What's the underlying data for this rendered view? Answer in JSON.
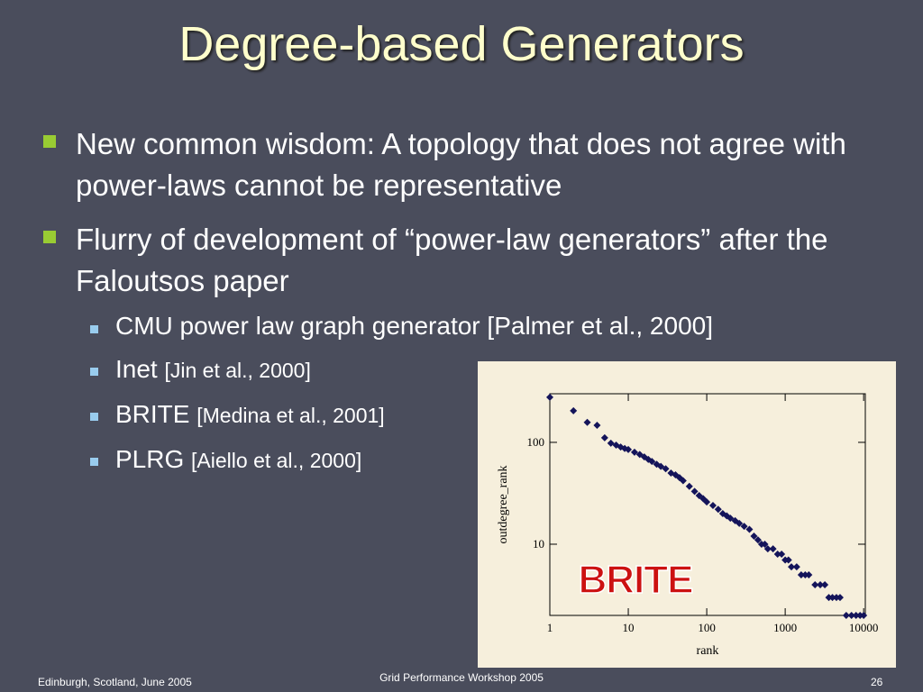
{
  "slide": {
    "title": "Degree-based Generators",
    "bullets": [
      {
        "text": "New common wisdom: A topology that does not agree with power-laws cannot be representative"
      },
      {
        "text": "Flurry of development of “power-law generators” after the Faloutsos paper",
        "sub": [
          {
            "name": "CMU power law graph generator [Palmer et al., 2000]"
          },
          {
            "name": "Inet",
            "ref": "[Jin et al., 2000]"
          },
          {
            "name": "BRITE",
            "ref": "[Medina et al., 2001]"
          },
          {
            "name": "PLRG",
            "ref": "[Aiello et al., 2000]"
          }
        ]
      }
    ],
    "footer": {
      "left": "Edinburgh, Scotland, June 2005",
      "center": "Grid Performance Workshop 2005",
      "right": "26"
    }
  },
  "chart_data": {
    "type": "scatter",
    "annotation": "BRITE",
    "x_label": "rank",
    "y_label": "outdegree_rank",
    "xscale": "log",
    "yscale": "log",
    "xlim": [
      1,
      10500
    ],
    "ylim": [
      2,
      300
    ],
    "xticks": [
      1,
      10,
      100,
      1000,
      10000
    ],
    "yticks": [
      10,
      100
    ],
    "color": "#14145a",
    "x": [
      1,
      2,
      3,
      4,
      5,
      6,
      7,
      8,
      9,
      10,
      12,
      14,
      16,
      18,
      20,
      23,
      26,
      30,
      35,
      40,
      45,
      50,
      60,
      70,
      80,
      90,
      100,
      120,
      140,
      160,
      180,
      200,
      230,
      260,
      300,
      350,
      400,
      450,
      500,
      550,
      600,
      700,
      800,
      900,
      1000,
      1100,
      1200,
      1400,
      1600,
      1800,
      2000,
      2400,
      2800,
      3200,
      3600,
      4000,
      4500,
      5000,
      6000,
      7000,
      8000,
      9000,
      10000
    ],
    "values": [
      277,
      204,
      157,
      147,
      111,
      98,
      94,
      90,
      87,
      85,
      80,
      76,
      72,
      68,
      65,
      61,
      58,
      55,
      50,
      48,
      45,
      42,
      37,
      33,
      30,
      28,
      26,
      24,
      22,
      20,
      19,
      18,
      17,
      16,
      15,
      14,
      12,
      11,
      10,
      10,
      9,
      9,
      8,
      8,
      7,
      7,
      6,
      6,
      5,
      5,
      5,
      4,
      4,
      4,
      3,
      3,
      3,
      3,
      2,
      2,
      2,
      2,
      2
    ]
  }
}
